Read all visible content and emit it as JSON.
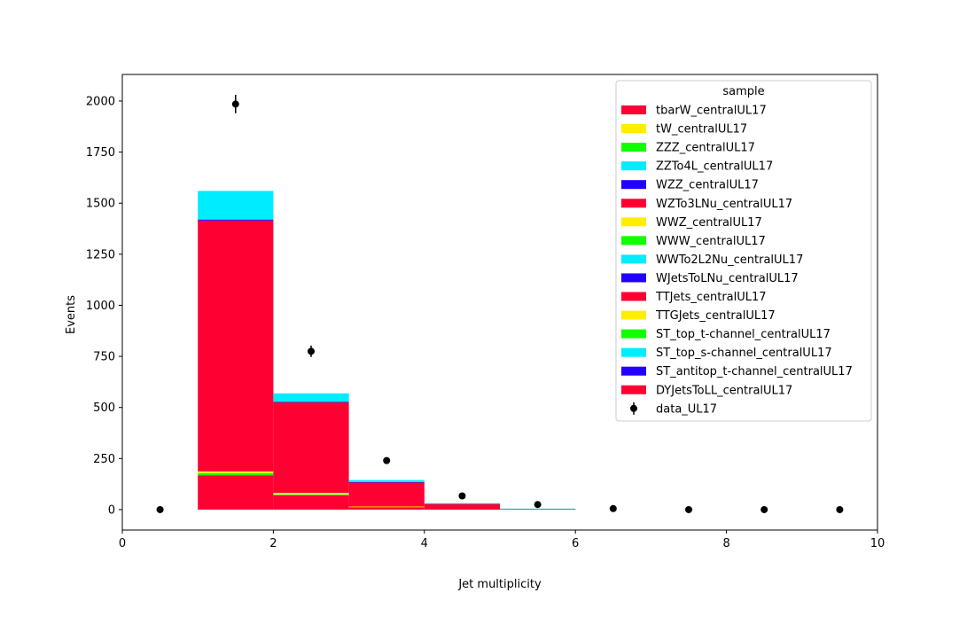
{
  "chart_data": {
    "type": "bar",
    "title": "",
    "xlabel": "Jet multiplicity",
    "ylabel": "Events",
    "xlim": [
      0,
      10
    ],
    "ylim": [
      -100,
      2130
    ],
    "xticks": [
      0,
      2,
      4,
      6,
      8,
      10
    ],
    "yticks": [
      0,
      250,
      500,
      750,
      1000,
      1250,
      1500,
      1750,
      2000
    ],
    "grid": false,
    "legend": {
      "title": "sample",
      "placement": "top-right"
    },
    "bin_edges": [
      0,
      1,
      2,
      3,
      4,
      5,
      6,
      7,
      8,
      9,
      10
    ],
    "series": [
      {
        "name": "DYJetsToLL_centralUL17",
        "color": "#ff0033",
        "values": [
          0,
          165,
          70,
          12,
          0,
          0,
          0,
          0,
          0,
          0
        ]
      },
      {
        "name": "ST_antitop_t-channel_centralUL17",
        "color": "#2200ff",
        "values": [
          0,
          2,
          1,
          0,
          0,
          0,
          0,
          0,
          0,
          0
        ]
      },
      {
        "name": "ST_top_s-channel_centralUL17",
        "color": "#00ecff",
        "values": [
          0,
          2,
          1,
          0,
          0,
          0,
          0,
          0,
          0,
          0
        ]
      },
      {
        "name": "ST_top_t-channel_centralUL17",
        "color": "#11ff00",
        "values": [
          0,
          10,
          2,
          0,
          0,
          0,
          0,
          0,
          0,
          0
        ]
      },
      {
        "name": "TTGJets_centralUL17",
        "color": "#ffee00",
        "values": [
          0,
          8,
          8,
          3,
          0,
          0,
          0,
          0,
          0,
          0
        ]
      },
      {
        "name": "TTJets_centralUL17",
        "color": "#ff0033",
        "values": [
          0,
          1228,
          443,
          119,
          28,
          4,
          0,
          0,
          0,
          0
        ]
      },
      {
        "name": "WJetsToLNu_centralUL17",
        "color": "#2200ff",
        "values": [
          0,
          5,
          2,
          1,
          0,
          0,
          0,
          0,
          0,
          0
        ]
      },
      {
        "name": "WWTo2L2Nu_centralUL17",
        "color": "#00ecff",
        "values": [
          0,
          140,
          42,
          10,
          3,
          1,
          0,
          0,
          0,
          0
        ]
      },
      {
        "name": "WWW_centralUL17",
        "color": "#11ff00",
        "values": [
          0,
          0,
          0,
          0,
          0,
          0,
          0,
          0,
          0,
          0
        ]
      },
      {
        "name": "WWZ_centralUL17",
        "color": "#ffee00",
        "values": [
          0,
          0,
          0,
          0,
          0,
          0,
          0,
          0,
          0,
          0
        ]
      },
      {
        "name": "WZTo3LNu_centralUL17",
        "color": "#ff0033",
        "values": [
          0,
          0,
          0,
          0,
          0,
          0,
          0,
          0,
          0,
          0
        ]
      },
      {
        "name": "WZZ_centralUL17",
        "color": "#2200ff",
        "values": [
          0,
          0,
          0,
          0,
          0,
          0,
          0,
          0,
          0,
          0
        ]
      },
      {
        "name": "ZZTo4L_centralUL17",
        "color": "#00ecff",
        "values": [
          0,
          0,
          0,
          0,
          0,
          0,
          0,
          0,
          0,
          0
        ]
      },
      {
        "name": "ZZZ_centralUL17",
        "color": "#11ff00",
        "values": [
          0,
          0,
          0,
          0,
          0,
          0,
          0,
          0,
          0,
          0
        ]
      },
      {
        "name": "tW_centralUL17",
        "color": "#ffee00",
        "values": [
          0,
          0,
          0,
          0,
          0,
          0,
          0,
          0,
          0,
          0
        ]
      },
      {
        "name": "tbarW_centralUL17",
        "color": "#ff0033",
        "values": [
          0,
          0,
          0,
          0,
          0,
          0,
          0,
          0,
          0,
          0
        ]
      }
    ],
    "data_points": {
      "name": "data_UL17",
      "x": [
        0.5,
        1.5,
        2.5,
        3.5,
        4.5,
        5.5,
        6.5,
        7.5,
        8.5,
        9.5
      ],
      "y": [
        0,
        1985,
        775,
        240,
        67,
        25,
        5,
        0,
        0,
        0
      ],
      "yerr": [
        0,
        45,
        28,
        15,
        8,
        5,
        2,
        0,
        0,
        0
      ]
    },
    "legend_order": [
      "tbarW_centralUL17",
      "tW_centralUL17",
      "ZZZ_centralUL17",
      "ZZTo4L_centralUL17",
      "WZZ_centralUL17",
      "WZTo3LNu_centralUL17",
      "WWZ_centralUL17",
      "WWW_centralUL17",
      "WWTo2L2Nu_centralUL17",
      "WJetsToLNu_centralUL17",
      "TTJets_centralUL17",
      "TTGJets_centralUL17",
      "ST_top_t-channel_centralUL17",
      "ST_top_s-channel_centralUL17",
      "ST_antitop_t-channel_centralUL17",
      "DYJetsToLL_centralUL17",
      "data_UL17"
    ]
  }
}
